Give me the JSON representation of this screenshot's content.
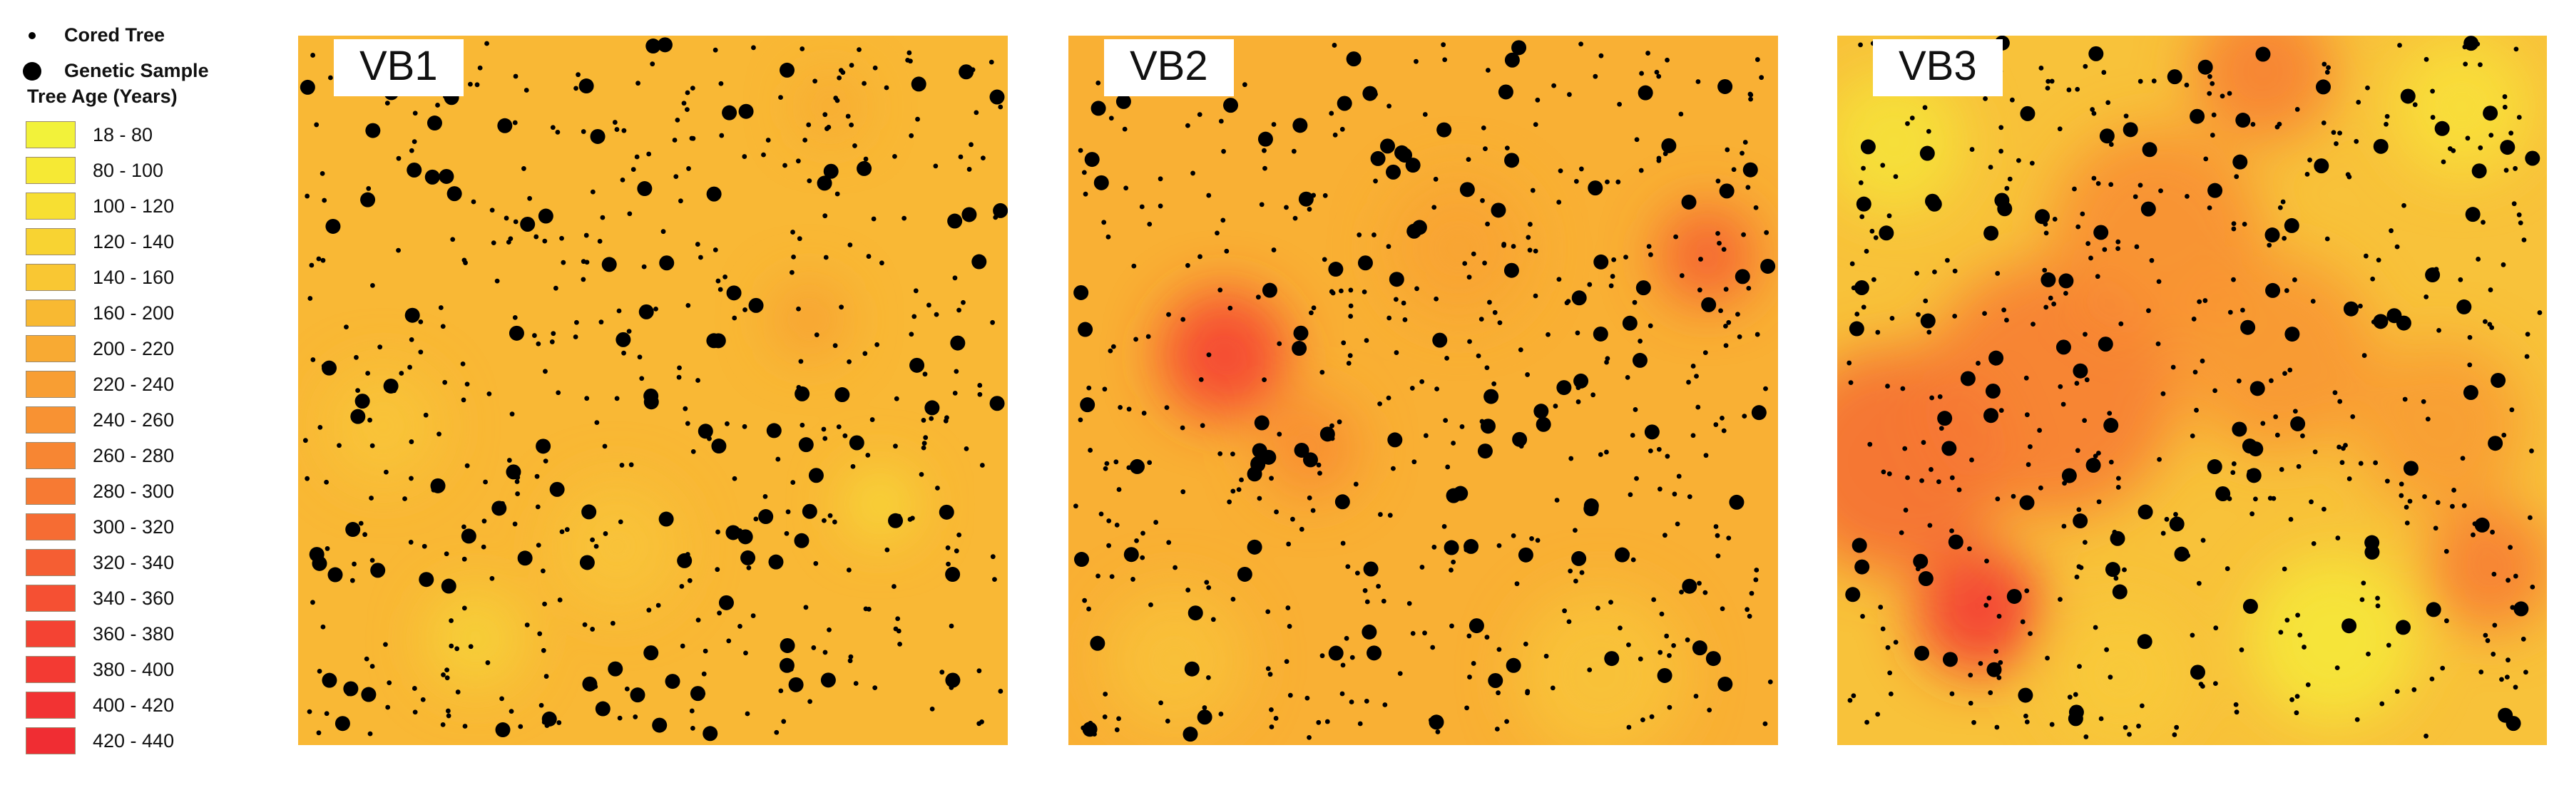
{
  "legend": {
    "cored_tree": "Cored Tree",
    "genetic_sample": "Genetic Sample",
    "title": "Tree Age (Years)",
    "classes": [
      {
        "label": "18 - 80",
        "color": "#f2f23a"
      },
      {
        "label": "80 - 100",
        "color": "#f6e934"
      },
      {
        "label": "100 - 120",
        "color": "#f7df32"
      },
      {
        "label": "120 - 140",
        "color": "#f8d332"
      },
      {
        "label": "140 - 160",
        "color": "#f9c733"
      },
      {
        "label": "160 - 200",
        "color": "#f8b932"
      },
      {
        "label": "200 - 220",
        "color": "#f8aa33"
      },
      {
        "label": "220 - 240",
        "color": "#f89e33"
      },
      {
        "label": "240 - 260",
        "color": "#f89233"
      },
      {
        "label": "260 - 280",
        "color": "#f78633"
      },
      {
        "label": "280 - 300",
        "color": "#f77a33"
      },
      {
        "label": "300 - 320",
        "color": "#f66c33"
      },
      {
        "label": "320 - 340",
        "color": "#f55e33"
      },
      {
        "label": "340 - 360",
        "color": "#f55033"
      },
      {
        "label": "360 - 380",
        "color": "#f44333"
      },
      {
        "label": "380 - 400",
        "color": "#f33a33"
      },
      {
        "label": "400 - 420",
        "color": "#f23333"
      },
      {
        "label": "420 - 440",
        "color": "#f02d33"
      }
    ]
  },
  "panels": [
    {
      "label": "VB1",
      "base_color": "#f9b835",
      "seed": 11,
      "hotspots": [
        {
          "kx": 0.72,
          "ky": 0.4,
          "r": 0.05,
          "color": "#f79a33"
        },
        {
          "kx": 0.75,
          "ky": 0.1,
          "r": 0.04,
          "color": "#f7a233"
        },
        {
          "kx": 0.82,
          "ky": 0.66,
          "r": 0.05,
          "color": "#f7df3a"
        },
        {
          "kx": 0.25,
          "ky": 0.85,
          "r": 0.07,
          "color": "#f6d43a"
        },
        {
          "kx": 0.12,
          "ky": 0.55,
          "r": 0.08,
          "color": "#f8c63a"
        },
        {
          "kx": 0.45,
          "ky": 0.72,
          "r": 0.09,
          "color": "#f8c43a"
        }
      ]
    },
    {
      "label": "VB2",
      "base_color": "#f9b034",
      "seed": 23,
      "hotspots": [
        {
          "kx": 0.22,
          "ky": 0.45,
          "r": 0.09,
          "color": "#f43a33"
        },
        {
          "kx": 0.9,
          "ky": 0.31,
          "r": 0.07,
          "color": "#f55a33"
        },
        {
          "kx": 0.34,
          "ky": 0.58,
          "r": 0.07,
          "color": "#f88833"
        },
        {
          "kx": 0.75,
          "ky": 0.9,
          "r": 0.12,
          "color": "#f8c43a"
        },
        {
          "kx": 0.15,
          "ky": 0.88,
          "r": 0.1,
          "color": "#f8c23a"
        },
        {
          "kx": 0.55,
          "ky": 0.3,
          "r": 0.1,
          "color": "#f8a233"
        }
      ]
    },
    {
      "label": "VB3",
      "base_color": "#f8c23a",
      "seed": 37,
      "hotspots": [
        {
          "kx": 0.2,
          "ky": 0.81,
          "r": 0.09,
          "color": "#f23333"
        },
        {
          "kx": 0.08,
          "ky": 0.6,
          "r": 0.16,
          "color": "#f56a33"
        },
        {
          "kx": 0.3,
          "ky": 0.5,
          "r": 0.18,
          "color": "#f77a33"
        },
        {
          "kx": 0.45,
          "ky": 0.28,
          "r": 0.15,
          "color": "#f88c33"
        },
        {
          "kx": 0.62,
          "ky": 0.45,
          "r": 0.14,
          "color": "#f89433"
        },
        {
          "kx": 0.85,
          "ky": 0.55,
          "r": 0.12,
          "color": "#f89a33"
        },
        {
          "kx": 0.92,
          "ky": 0.75,
          "r": 0.09,
          "color": "#f77a33"
        },
        {
          "kx": 0.6,
          "ky": 0.05,
          "r": 0.1,
          "color": "#f77c33"
        },
        {
          "kx": 0.88,
          "ky": 0.1,
          "r": 0.1,
          "color": "#f8e23a"
        },
        {
          "kx": 0.7,
          "ky": 0.85,
          "r": 0.12,
          "color": "#f6ea3a"
        },
        {
          "kx": 0.08,
          "ky": 0.15,
          "r": 0.1,
          "color": "#f6e43a"
        },
        {
          "kx": 0.4,
          "ky": 0.9,
          "r": 0.1,
          "color": "#f8ca3a"
        }
      ]
    }
  ]
}
